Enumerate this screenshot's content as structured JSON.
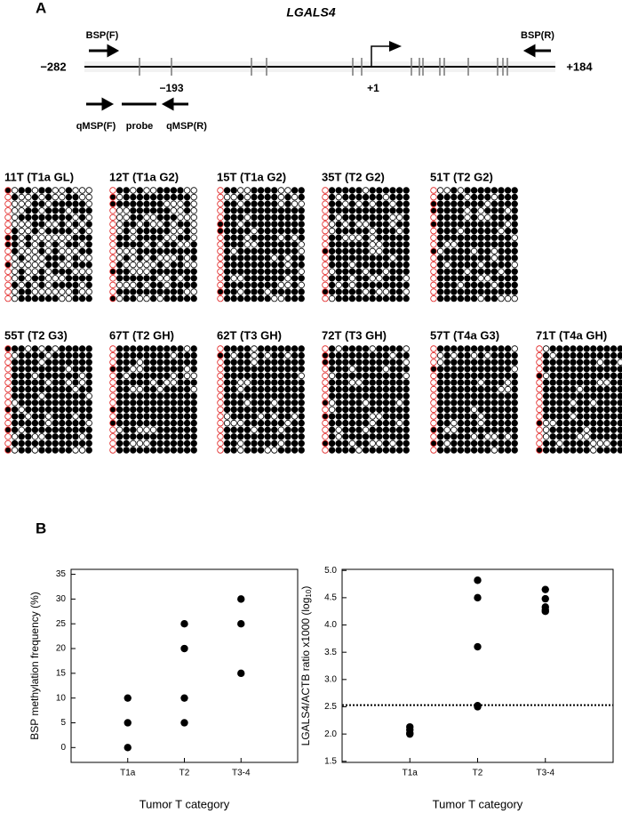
{
  "panel_a": {
    "label": "A",
    "gene": "LGALS4",
    "start": "−282",
    "end": "+184",
    "bsp_f": "BSP(F)",
    "bsp_r": "BSP(R)",
    "pos_193": "−193",
    "tss": "+1",
    "qmsp_f": "qMSP(F)",
    "probe": "probe",
    "qmsp_r": "qMSP(R)",
    "samples": [
      "11T (T1a GL)",
      "12T (T1a G2)",
      "15T (T1a G2)",
      "35T (T2 G2)",
      "51T (T2 G2)",
      "55T (T2 G3)",
      "67T (T2 GH)",
      "62T (T3 GH)",
      "72T (T3 GH)",
      "57T (T4a G3)",
      "71T (T4a GH)"
    ]
  },
  "panel_b": {
    "label": "B"
  },
  "chart_data": [
    {
      "type": "scatter",
      "y_label": "BSP methylation frequency (%)",
      "x_label": "Tumor T category",
      "color": "#000000",
      "groups": [
        {
          "name": "T1a",
          "values": [
            10,
            5,
            0
          ]
        },
        {
          "name": "T2",
          "values": [
            25,
            20,
            10,
            5
          ]
        },
        {
          "name": "T3-4",
          "values": [
            30,
            25,
            15
          ]
        }
      ],
      "ylim": [
        -3,
        36
      ],
      "yticks": [
        0,
        5,
        10,
        15,
        20,
        25,
        30,
        35
      ]
    },
    {
      "type": "scatter",
      "y_label_parts": [
        "LGALS4/ACTB ratio x1000 (log",
        "10",
        ")"
      ],
      "x_label": "Tumor T category",
      "color": "#000000",
      "groups": [
        {
          "name": "T1a",
          "values": [
            2.13,
            2.08,
            2.02,
            2.0
          ]
        },
        {
          "name": "T2",
          "values": [
            4.82,
            4.5,
            3.6,
            2.52,
            2.5
          ]
        },
        {
          "name": "T3-4",
          "values": [
            4.65,
            4.48,
            4.33,
            4.28,
            4.25
          ]
        }
      ],
      "threshold": 2.53,
      "ylim": [
        1.48,
        5.02
      ],
      "yticks": [
        {
          "value": 1.5,
          "label": "1.5"
        },
        {
          "value": 2.0,
          "label": "2.0"
        },
        {
          "value": 2.5,
          "label": "2.5"
        },
        {
          "value": 3.0,
          "label": "3.0"
        },
        {
          "value": 3.5,
          "label": "3.5"
        },
        {
          "value": 4.0,
          "label": "4.0"
        },
        {
          "value": 4.5,
          "label": "4.5"
        },
        {
          "value": 5.0,
          "label": "5.0"
        }
      ]
    }
  ]
}
